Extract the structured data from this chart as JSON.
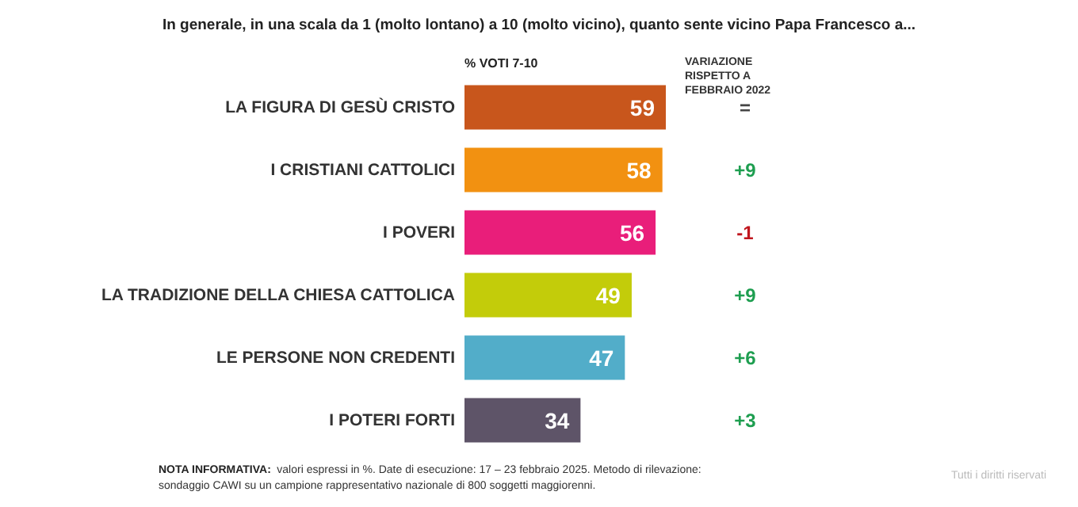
{
  "chart_data": {
    "type": "bar",
    "orientation": "horizontal",
    "data_labels": true,
    "title": "In generale, in una scala da 1 (molto lontano) a 10 (molto vicino), quanto sente vicino Papa Francesco a...",
    "xlabel": "% VOTI 7-10",
    "categories": [
      "LA FIGURA DI GESÙ CRISTO",
      "I CRISTIANI CATTOLICI",
      "I POVERI",
      "LA TRADIZIONE DELLA CHIESA CATTOLICA",
      "LE PERSONE NON CREDENTI",
      "I POTERI FORTI"
    ],
    "values": [
      59,
      58,
      56,
      49,
      47,
      34
    ],
    "colors": [
      "#c8561c",
      "#f29111",
      "#e91e7a",
      "#c3cc0a",
      "#52adc9",
      "#5e5468"
    ],
    "annotations": [
      "VARIAZIONE RISPETTO A FEBBRAIO 2022",
      "=",
      "+9",
      "-1",
      "+9",
      "+6",
      "+3",
      "NOTA INFORMATIVA: valori espressi in %. Date di esecuzione: 17 – 23 febbraio 2025. Metodo di rilevazione: sondaggio CAWI su un campione rappresentativo nazionale di 800 soggetti maggiorenni.",
      "Tutti i diritti riservati"
    ]
  }
}
